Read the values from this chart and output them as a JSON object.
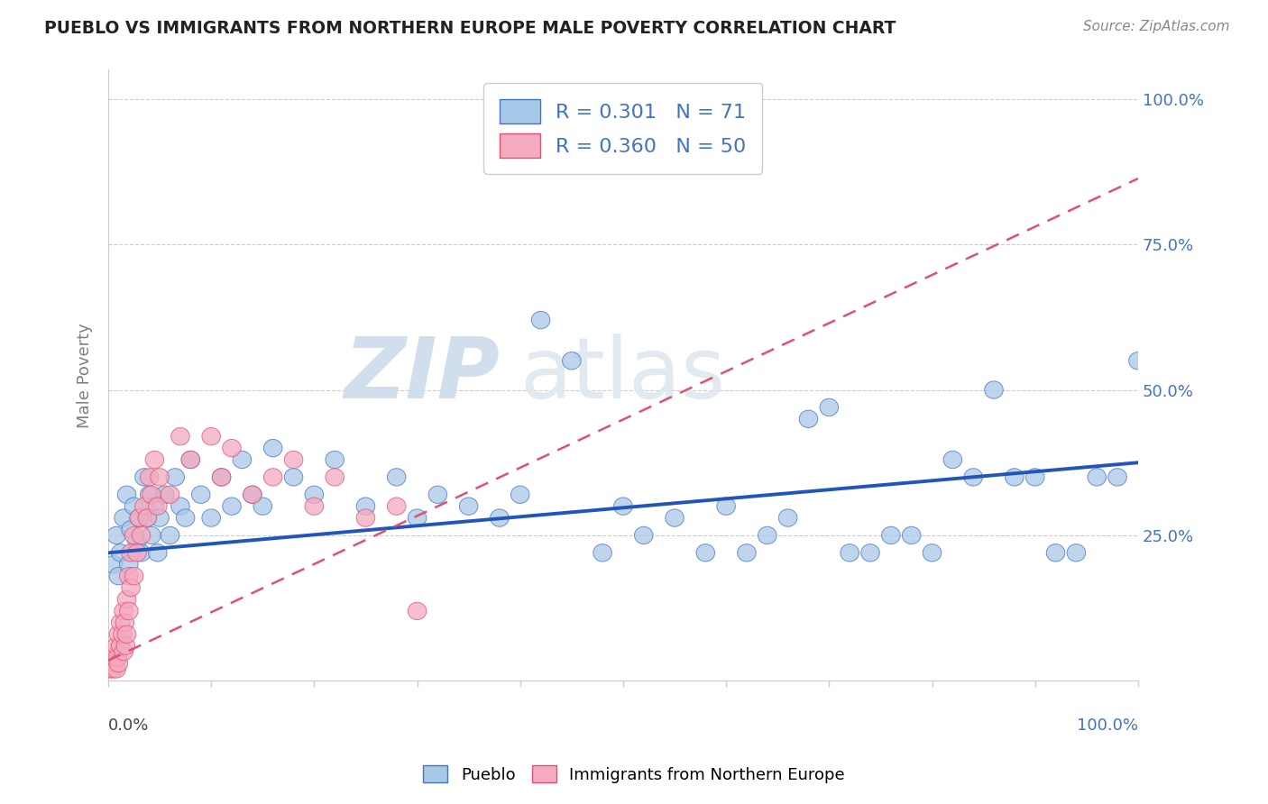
{
  "title": "PUEBLO VS IMMIGRANTS FROM NORTHERN EUROPE MALE POVERTY CORRELATION CHART",
  "source": "Source: ZipAtlas.com",
  "ylabel": "Male Poverty",
  "ytick_labels": [
    "25.0%",
    "50.0%",
    "75.0%",
    "100.0%"
  ],
  "ytick_values": [
    0.25,
    0.5,
    0.75,
    1.0
  ],
  "xlim": [
    0.0,
    1.0
  ],
  "ylim": [
    0.0,
    1.05
  ],
  "legend_blue_R": "0.301",
  "legend_blue_N": "71",
  "legend_pink_R": "0.360",
  "legend_pink_N": "50",
  "blue_color": "#A8C8E8",
  "pink_color": "#F4AABF",
  "blue_edge_color": "#4472C4",
  "pink_edge_color": "#E05070",
  "blue_line_color": "#2255BB",
  "pink_line_color": "#E05070",
  "blue_line_style": "-",
  "pink_line_style": "--",
  "blue_scatter": [
    [
      0.005,
      0.2
    ],
    [
      0.008,
      0.25
    ],
    [
      0.01,
      0.18
    ],
    [
      0.012,
      0.22
    ],
    [
      0.015,
      0.28
    ],
    [
      0.018,
      0.32
    ],
    [
      0.02,
      0.2
    ],
    [
      0.022,
      0.26
    ],
    [
      0.025,
      0.3
    ],
    [
      0.028,
      0.24
    ],
    [
      0.03,
      0.28
    ],
    [
      0.032,
      0.22
    ],
    [
      0.035,
      0.35
    ],
    [
      0.038,
      0.28
    ],
    [
      0.04,
      0.32
    ],
    [
      0.042,
      0.25
    ],
    [
      0.045,
      0.3
    ],
    [
      0.048,
      0.22
    ],
    [
      0.05,
      0.28
    ],
    [
      0.055,
      0.32
    ],
    [
      0.06,
      0.25
    ],
    [
      0.065,
      0.35
    ],
    [
      0.07,
      0.3
    ],
    [
      0.075,
      0.28
    ],
    [
      0.08,
      0.38
    ],
    [
      0.09,
      0.32
    ],
    [
      0.1,
      0.28
    ],
    [
      0.11,
      0.35
    ],
    [
      0.12,
      0.3
    ],
    [
      0.13,
      0.38
    ],
    [
      0.14,
      0.32
    ],
    [
      0.15,
      0.3
    ],
    [
      0.16,
      0.4
    ],
    [
      0.18,
      0.35
    ],
    [
      0.2,
      0.32
    ],
    [
      0.22,
      0.38
    ],
    [
      0.25,
      0.3
    ],
    [
      0.28,
      0.35
    ],
    [
      0.3,
      0.28
    ],
    [
      0.32,
      0.32
    ],
    [
      0.35,
      0.3
    ],
    [
      0.38,
      0.28
    ],
    [
      0.4,
      0.32
    ],
    [
      0.42,
      0.62
    ],
    [
      0.45,
      0.55
    ],
    [
      0.48,
      0.22
    ],
    [
      0.5,
      0.3
    ],
    [
      0.52,
      0.25
    ],
    [
      0.55,
      0.28
    ],
    [
      0.58,
      0.22
    ],
    [
      0.6,
      0.3
    ],
    [
      0.62,
      0.22
    ],
    [
      0.64,
      0.25
    ],
    [
      0.66,
      0.28
    ],
    [
      0.68,
      0.45
    ],
    [
      0.7,
      0.47
    ],
    [
      0.72,
      0.22
    ],
    [
      0.74,
      0.22
    ],
    [
      0.76,
      0.25
    ],
    [
      0.78,
      0.25
    ],
    [
      0.8,
      0.22
    ],
    [
      0.82,
      0.38
    ],
    [
      0.84,
      0.35
    ],
    [
      0.86,
      0.5
    ],
    [
      0.88,
      0.35
    ],
    [
      0.9,
      0.35
    ],
    [
      0.92,
      0.22
    ],
    [
      0.94,
      0.22
    ],
    [
      0.96,
      0.35
    ],
    [
      0.98,
      0.35
    ],
    [
      1.0,
      0.55
    ]
  ],
  "pink_scatter": [
    [
      0.002,
      0.02
    ],
    [
      0.003,
      0.03
    ],
    [
      0.004,
      0.04
    ],
    [
      0.005,
      0.02
    ],
    [
      0.006,
      0.05
    ],
    [
      0.007,
      0.03
    ],
    [
      0.008,
      0.06
    ],
    [
      0.008,
      0.02
    ],
    [
      0.009,
      0.04
    ],
    [
      0.01,
      0.08
    ],
    [
      0.01,
      0.03
    ],
    [
      0.012,
      0.06
    ],
    [
      0.012,
      0.1
    ],
    [
      0.014,
      0.08
    ],
    [
      0.015,
      0.12
    ],
    [
      0.015,
      0.05
    ],
    [
      0.016,
      0.1
    ],
    [
      0.017,
      0.06
    ],
    [
      0.018,
      0.14
    ],
    [
      0.018,
      0.08
    ],
    [
      0.02,
      0.12
    ],
    [
      0.02,
      0.18
    ],
    [
      0.022,
      0.16
    ],
    [
      0.022,
      0.22
    ],
    [
      0.025,
      0.18
    ],
    [
      0.025,
      0.25
    ],
    [
      0.028,
      0.22
    ],
    [
      0.03,
      0.28
    ],
    [
      0.032,
      0.25
    ],
    [
      0.035,
      0.3
    ],
    [
      0.038,
      0.28
    ],
    [
      0.04,
      0.35
    ],
    [
      0.042,
      0.32
    ],
    [
      0.045,
      0.38
    ],
    [
      0.048,
      0.3
    ],
    [
      0.05,
      0.35
    ],
    [
      0.06,
      0.32
    ],
    [
      0.07,
      0.42
    ],
    [
      0.08,
      0.38
    ],
    [
      0.1,
      0.42
    ],
    [
      0.11,
      0.35
    ],
    [
      0.12,
      0.4
    ],
    [
      0.14,
      0.32
    ],
    [
      0.16,
      0.35
    ],
    [
      0.18,
      0.38
    ],
    [
      0.2,
      0.3
    ],
    [
      0.22,
      0.35
    ],
    [
      0.25,
      0.28
    ],
    [
      0.28,
      0.3
    ],
    [
      0.3,
      0.12
    ]
  ],
  "blue_line_x0": 0.0,
  "blue_line_y0": 0.22,
  "blue_line_x1": 1.0,
  "blue_line_y1": 0.375,
  "pink_line_x0": 0.0,
  "pink_line_y0": 0.035,
  "pink_line_x1": 0.32,
  "pink_line_y1": 0.3
}
